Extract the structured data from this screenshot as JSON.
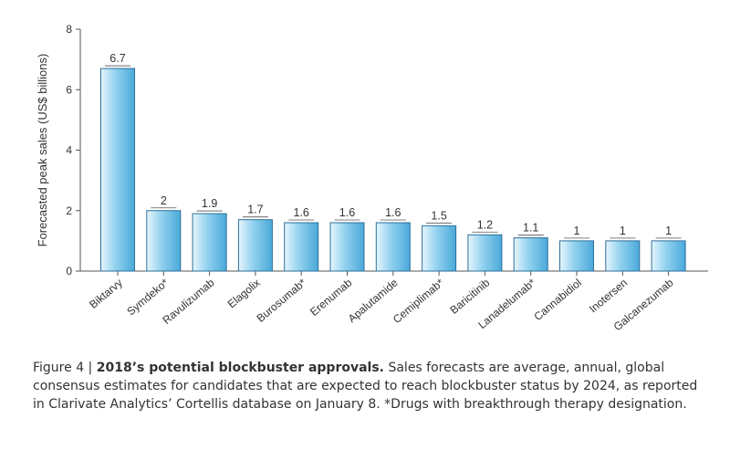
{
  "chart_data": {
    "type": "bar",
    "title": "",
    "xlabel": "",
    "ylabel": "Forecasted peak sales (US$ billions)",
    "ylim": [
      0,
      8
    ],
    "yticks": [
      0,
      2,
      4,
      6,
      8
    ],
    "grid": false,
    "categories": [
      "Biktarvy",
      "Symdeko*",
      "Ravulizumab",
      "Elagolix",
      "Burosumab*",
      "Erenumab",
      "Apalutamide",
      "Cemiplimab*",
      "Baricitinib",
      "Lanadelumab*",
      "Cannabidiol",
      "Inotersen",
      "Galcanezumab"
    ],
    "values": [
      6.7,
      2,
      1.9,
      1.7,
      1.6,
      1.6,
      1.6,
      1.5,
      1.2,
      1.1,
      1,
      1,
      1
    ],
    "value_labels": [
      "6.7",
      "2",
      "1.9",
      "1.7",
      "1.6",
      "1.6",
      "1.6",
      "1.5",
      "1.2",
      "1.1",
      "1",
      "1",
      "1"
    ]
  },
  "colors": {
    "bar_light": "#e6f5fc",
    "bar_mid": "#8fd0ee",
    "bar_dark": "#4aa9d9",
    "bar_stroke": "#2d6f99",
    "axis": "#555555",
    "text": "#333333"
  },
  "caption": {
    "prefix": "Figure 4 | ",
    "bold": "2018’s potential blockbuster approvals.",
    "body": " Sales forecasts are average, annual, global consensus estimates for candidates that are expected to reach blockbuster status by 2024, as reported in Clarivate Analytics’ Cortellis database on January 8. *Drugs with breakthrough therapy designation."
  }
}
